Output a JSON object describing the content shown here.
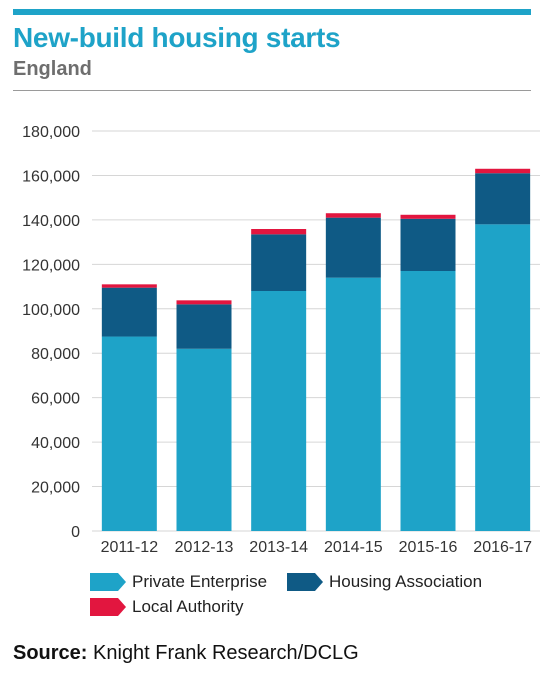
{
  "header": {
    "title": "New-build housing starts",
    "subtitle": "England"
  },
  "source": {
    "label": "Source:",
    "text": "Knight Frank Research/DCLG"
  },
  "chart_data": {
    "type": "bar",
    "stacked": true,
    "categories": [
      "2011-12",
      "2012-13",
      "2013-14",
      "2014-15",
      "2015-16",
      "2016-17"
    ],
    "series": [
      {
        "name": "Private Enterprise",
        "color": "#1ea3c8",
        "values": [
          87500,
          82000,
          108000,
          114000,
          117000,
          138000
        ]
      },
      {
        "name": "Housing Association",
        "color": "#0f5a85",
        "values": [
          22000,
          20000,
          25500,
          27000,
          23500,
          23000
        ]
      },
      {
        "name": "Local Authority",
        "color": "#e2163f",
        "values": [
          1500,
          1800,
          2400,
          2000,
          1800,
          2000
        ]
      }
    ],
    "ylim": [
      0,
      180000
    ],
    "yticks": [
      "0",
      "20,000",
      "40,000",
      "60,000",
      "80,000",
      "100,000",
      "120,000",
      "140,000",
      "160,000",
      "180,000"
    ],
    "grid": true,
    "legend": "bottom-left"
  }
}
